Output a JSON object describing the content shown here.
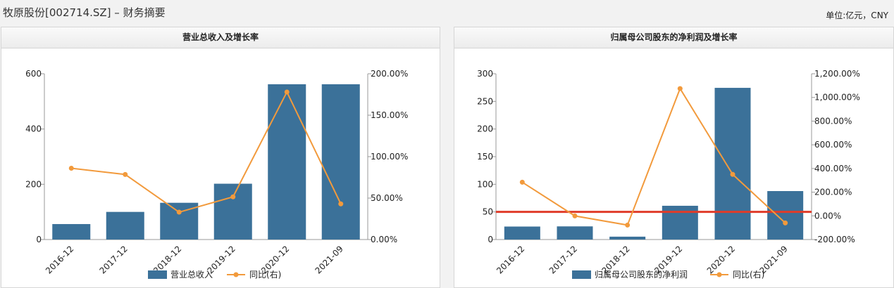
{
  "page": {
    "title": "牧原股份[002714.SZ] – 财务摘要",
    "unit": "单位:亿元，CNY"
  },
  "colors": {
    "bar": "#3b7199",
    "line": "#f29a3c",
    "reference_line": "#e03c2a",
    "axis": "#999999"
  },
  "charts": [
    {
      "header": "营业总收入及增长率"
    },
    {
      "header": "归属母公司股东的净利润及增长率"
    }
  ],
  "chart_data": [
    {
      "type": "bar",
      "title": "营业总收入及增长率",
      "categories": [
        "2016-12",
        "2017-12",
        "2018-12",
        "2019-12",
        "2020-12",
        "2021-09"
      ],
      "series": [
        {
          "name": "营业总收入",
          "type": "bar",
          "axis": "left",
          "values": [
            56,
            100,
            133,
            202,
            562,
            562
          ]
        },
        {
          "name": "同比(右)",
          "type": "line",
          "axis": "right",
          "values": [
            86.0,
            78.5,
            33.0,
            51.5,
            178.0,
            43.0
          ]
        }
      ],
      "y_left": {
        "min": 0,
        "max": 600,
        "ticks": [
          0,
          200,
          400,
          600
        ],
        "tick_labels": [
          "0",
          "200",
          "400",
          "600"
        ]
      },
      "y_right": {
        "min": 0,
        "max": 200,
        "ticks": [
          0,
          50,
          100,
          150,
          200
        ],
        "tick_labels": [
          "0.00%",
          "50.00%",
          "100.00%",
          "150.00%",
          "200.00%"
        ]
      },
      "legend": "bottom",
      "grid": false
    },
    {
      "type": "bar",
      "title": "归属母公司股东的净利润及增长率",
      "categories": [
        "2016-12",
        "2017-12",
        "2018-12",
        "2019-12",
        "2020-12",
        "2021-09"
      ],
      "series": [
        {
          "name": "归属母公司股东的净利润",
          "type": "bar",
          "axis": "left",
          "values": [
            23.5,
            23.8,
            5.2,
            61.1,
            274.5,
            87.7
          ]
        },
        {
          "name": "同比(右)",
          "type": "line",
          "axis": "right",
          "values": [
            284,
            -0.5,
            -78,
            1075,
            350,
            -60
          ]
        }
      ],
      "reference_line": {
        "axis": "left",
        "value": 50
      },
      "y_left": {
        "min": 0,
        "max": 300,
        "ticks": [
          0,
          50,
          100,
          150,
          200,
          250,
          300
        ],
        "tick_labels": [
          "0",
          "50",
          "100",
          "150",
          "200",
          "250",
          "300"
        ]
      },
      "y_right": {
        "min": -200,
        "max": 1200,
        "ticks": [
          -200,
          0,
          200,
          400,
          600,
          800,
          1000,
          1200
        ],
        "tick_labels": [
          "-200.00%",
          "0.00%",
          "200.00%",
          "400.00%",
          "600.00%",
          "800.00%",
          "1,000.00%",
          "1,200.00%"
        ]
      },
      "legend": "bottom",
      "grid": false
    }
  ]
}
